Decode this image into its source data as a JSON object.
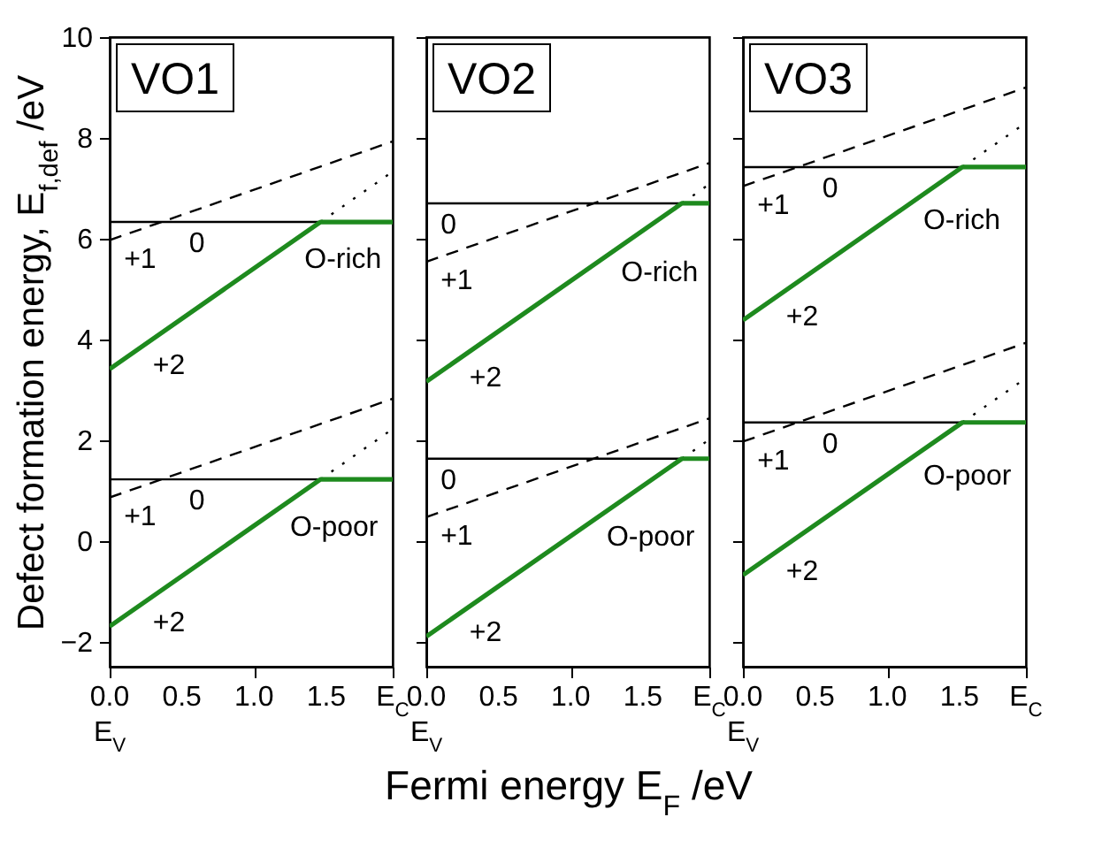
{
  "chart_data": [
    {
      "type": "line",
      "title": "VO1",
      "ylabel": "Defect formation energy, E$_{f,def}$ /eV",
      "xlim": [
        0,
        1.96
      ],
      "ylim": [
        -2.5,
        10
      ],
      "xticks": [
        {
          "value": 0,
          "label": "0.0\nE$_{V}$"
        },
        {
          "value": 0.5,
          "label": "0.5"
        },
        {
          "value": 1,
          "label": "1.0"
        },
        {
          "value": 1.5,
          "label": "1.5"
        },
        {
          "value": 1.96,
          "label": "E$_{C}$"
        }
      ],
      "yticks": [
        -2,
        0,
        2,
        4,
        6,
        8,
        10
      ],
      "series": [
        {
          "color": "#000000",
          "line_style": "solid",
          "x": [
            0,
            1.96
          ],
          "values": [
            6.33,
            6.33
          ]
        },
        {
          "color": "#000000",
          "line_style": "dashed",
          "x": [
            0,
            1.96
          ],
          "values": [
            5.97,
            7.93
          ]
        },
        {
          "color": "#000000",
          "line_style": "dotted",
          "x": [
            1.46,
            1.96
          ],
          "values": [
            6.33,
            7.33
          ]
        },
        {
          "color": "#1e8a1e",
          "line_style": "solid",
          "x": [
            0,
            1.46,
            1.96
          ],
          "values": [
            3.41,
            6.33,
            6.33
          ]
        },
        {
          "color": "#000000",
          "line_style": "solid",
          "x": [
            0,
            1.96
          ],
          "values": [
            1.22,
            1.22
          ]
        },
        {
          "color": "#000000",
          "line_style": "dashed",
          "x": [
            0,
            1.96
          ],
          "values": [
            0.86,
            2.82
          ]
        },
        {
          "color": "#000000",
          "line_style": "dotted",
          "x": [
            1.46,
            1.96
          ],
          "values": [
            1.22,
            2.22
          ]
        },
        {
          "color": "#1e8a1e",
          "line_style": "solid",
          "x": [
            0,
            1.46,
            1.96
          ],
          "values": [
            -1.7,
            1.22,
            1.22
          ]
        }
      ],
      "annotations": [
        {
          "text": "0",
          "x": 0.5,
          "y": 6.33
        },
        {
          "text": "+1",
          "x": 0.05,
          "y": 6.02
        },
        {
          "text": "+2",
          "x": 0.25,
          "y": 3.91
        },
        {
          "text": "O-rich",
          "x": 1.3,
          "y": 6.01
        },
        {
          "text": "0",
          "x": 0.5,
          "y": 1.22
        },
        {
          "text": "+1",
          "x": 0.05,
          "y": 0.91
        },
        {
          "text": "+2",
          "x": 0.25,
          "y": -1.2
        },
        {
          "text": "O-poor",
          "x": 1.2,
          "y": 0.7
        }
      ]
    },
    {
      "type": "line",
      "title": "VO2",
      "xlabel": "Fermi energy E$_{F}$ /eV",
      "tick_labels": "x",
      "xlim": [
        0,
        1.96
      ],
      "ylim": [
        -2.5,
        10
      ],
      "xticks": [
        {
          "value": 0,
          "label": "0.0\nE$_{V}$"
        },
        {
          "value": 0.5,
          "label": "0.5"
        },
        {
          "value": 1,
          "label": "1.0"
        },
        {
          "value": 1.5,
          "label": "1.5"
        },
        {
          "value": 1.96,
          "label": "E$_{C}$"
        }
      ],
      "yticks": [
        -2,
        0,
        2,
        4,
        6,
        8,
        10
      ],
      "series": [
        {
          "color": "#000000",
          "line_style": "solid",
          "x": [
            0,
            1.96
          ],
          "values": [
            6.7,
            6.7
          ]
        },
        {
          "color": "#000000",
          "line_style": "dashed",
          "x": [
            0,
            1.96
          ],
          "values": [
            5.54,
            7.5
          ]
        },
        {
          "color": "#000000",
          "line_style": "dotted",
          "x": [
            1.77,
            1.96
          ],
          "values": [
            6.7,
            7.08
          ]
        },
        {
          "color": "#1e8a1e",
          "line_style": "solid",
          "x": [
            0,
            1.77,
            1.96
          ],
          "values": [
            3.16,
            6.7,
            6.7
          ]
        },
        {
          "color": "#000000",
          "line_style": "solid",
          "x": [
            0,
            1.96
          ],
          "values": [
            1.63,
            1.63
          ]
        },
        {
          "color": "#000000",
          "line_style": "dashed",
          "x": [
            0,
            1.96
          ],
          "values": [
            0.47,
            2.43
          ]
        },
        {
          "color": "#000000",
          "line_style": "dotted",
          "x": [
            1.77,
            1.96
          ],
          "values": [
            1.63,
            2.01
          ]
        },
        {
          "color": "#1e8a1e",
          "line_style": "solid",
          "x": [
            0,
            1.77,
            1.96
          ],
          "values": [
            -1.9,
            1.63,
            1.63
          ]
        }
      ],
      "annotations": [
        {
          "text": "0",
          "x": 0.05,
          "y": 6.7
        },
        {
          "text": "+1",
          "x": 0.05,
          "y": 5.59
        },
        {
          "text": "+2",
          "x": 0.25,
          "y": 3.66
        },
        {
          "text": "O-rich",
          "x": 1.3,
          "y": 5.76
        },
        {
          "text": "0",
          "x": 0.05,
          "y": 1.63
        },
        {
          "text": "+1",
          "x": 0.05,
          "y": 0.52
        },
        {
          "text": "+2",
          "x": 0.25,
          "y": -1.4
        },
        {
          "text": "O-poor",
          "x": 1.2,
          "y": 0.5
        }
      ]
    },
    {
      "type": "line",
      "title": "VO3",
      "tick_labels": "x",
      "xlim": [
        0,
        1.96
      ],
      "ylim": [
        -2.5,
        10
      ],
      "xticks": [
        {
          "value": 0,
          "label": "0.0\nE$_{V}$"
        },
        {
          "value": 0.5,
          "label": "0.5"
        },
        {
          "value": 1,
          "label": "1.0"
        },
        {
          "value": 1.5,
          "label": "1.5"
        },
        {
          "value": 1.96,
          "label": "E$_{C}$"
        }
      ],
      "yticks": [
        -2,
        0,
        2,
        4,
        6,
        8,
        10
      ],
      "series": [
        {
          "color": "#000000",
          "line_style": "solid",
          "x": [
            0,
            1.96
          ],
          "values": [
            7.42,
            7.42
          ]
        },
        {
          "color": "#000000",
          "line_style": "dashed",
          "x": [
            0,
            1.96
          ],
          "values": [
            7.04,
            9
          ]
        },
        {
          "color": "#000000",
          "line_style": "dotted",
          "x": [
            1.52,
            1.96
          ],
          "values": [
            7.42,
            8.3
          ]
        },
        {
          "color": "#1e8a1e",
          "line_style": "solid",
          "x": [
            0,
            1.52,
            1.96
          ],
          "values": [
            4.38,
            7.42,
            7.42
          ]
        },
        {
          "color": "#000000",
          "line_style": "solid",
          "x": [
            0,
            1.96
          ],
          "values": [
            2.35,
            2.35
          ]
        },
        {
          "color": "#000000",
          "line_style": "dashed",
          "x": [
            0,
            1.96
          ],
          "values": [
            1.97,
            3.93
          ]
        },
        {
          "color": "#000000",
          "line_style": "dotted",
          "x": [
            1.52,
            1.96
          ],
          "values": [
            2.35,
            3.23
          ]
        },
        {
          "color": "#1e8a1e",
          "line_style": "solid",
          "x": [
            0,
            1.52,
            1.96
          ],
          "values": [
            -0.68,
            2.35,
            2.35
          ]
        }
      ],
      "annotations": [
        {
          "text": "0",
          "x": 0.5,
          "y": 7.42
        },
        {
          "text": "+1",
          "x": 0.05,
          "y": 7.09
        },
        {
          "text": "+2",
          "x": 0.25,
          "y": 4.88
        },
        {
          "text": "O-rich",
          "x": 1.2,
          "y": 6.78
        },
        {
          "text": "0",
          "x": 0.5,
          "y": 2.35
        },
        {
          "text": "+1",
          "x": 0.05,
          "y": 2.02
        },
        {
          "text": "+2",
          "x": 0.25,
          "y": -0.18
        },
        {
          "text": "O-poor",
          "x": 1.2,
          "y": 1.72
        }
      ]
    }
  ]
}
